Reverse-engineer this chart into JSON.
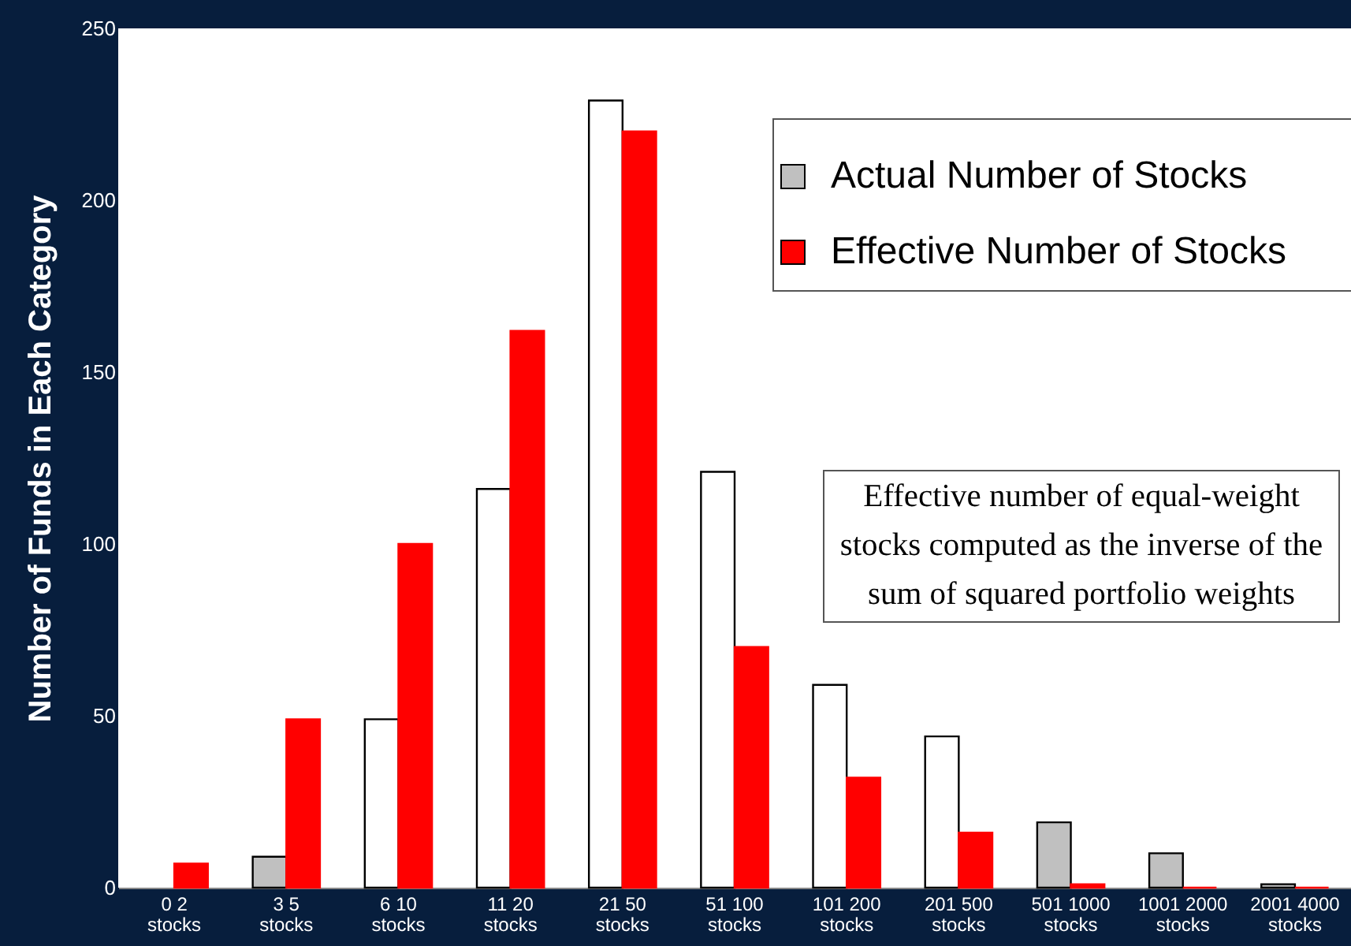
{
  "chart_data": {
    "type": "bar",
    "ylabel": "Number of Funds in Each Category",
    "categories": [
      "0  2\nstocks",
      "3  5\nstocks",
      "6  10\nstocks",
      "11  20\nstocks",
      "21  50\nstocks",
      "51  100\nstocks",
      "101  200\nstocks",
      "201  500\nstocks",
      "501  1000\nstocks",
      "1001  2000\nstocks",
      "2001  4000\nstocks"
    ],
    "series": [
      {
        "name": "Actual Number of Stocks",
        "color": "#c0c0c0",
        "colors": [
          null,
          "#c0c0c0",
          "#ffffff",
          "#ffffff",
          "#ffffff",
          "#ffffff",
          "#ffffff",
          "#ffffff",
          "#c0c0c0",
          "#c0c0c0",
          "#c0c0c0"
        ],
        "values": [
          null,
          9,
          49,
          116,
          229,
          121,
          59,
          44,
          19,
          10,
          1
        ]
      },
      {
        "name": "Effective Number of Stocks",
        "color": "#ff0000",
        "values": [
          7,
          49,
          100,
          162,
          220,
          70,
          32,
          16,
          1,
          0,
          0
        ]
      }
    ],
    "ylim": [
      0,
      250
    ],
    "yticks": [
      0,
      50,
      100,
      150,
      200,
      250
    ],
    "grid": false,
    "legend": "top right",
    "annotations": [
      "Effective number of equal-weight stocks computed as the inverse of the sum of squared portfolio weights"
    ]
  }
}
